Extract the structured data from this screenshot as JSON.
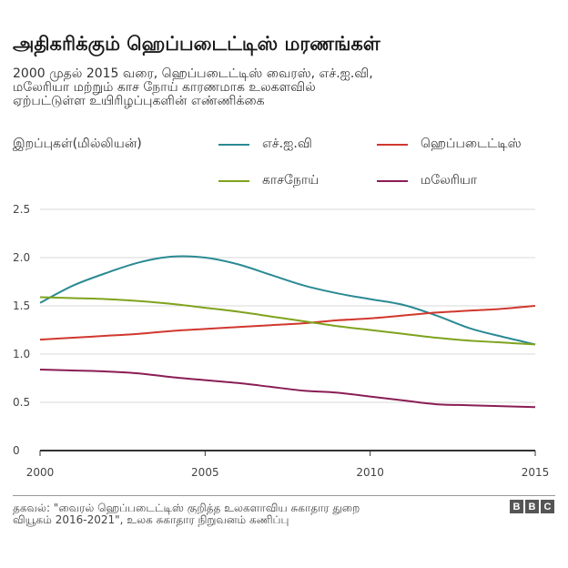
{
  "header": {
    "title": "அதிகரிக்கும் ஹெப்படைட்டிஸ் மரணங்கள்",
    "subtitle_lines": [
      "2000 முதல் 2015 வரை, ஹெப்படைட்டிஸ் வைரஸ், எச்.ஐ.வி,",
      "மலேரியா மற்றும் காச நோய் காரணமாக உலகளவில்",
      "ஏற்பட்டுள்ள உயிரிழப்புகளின் எண்ணிக்கை"
    ]
  },
  "colors": {
    "hiv": "#2a8a93",
    "hepatitis": "#d1372e",
    "tb": "#7fa31e",
    "malaria": "#8a1d55",
    "grid": "#d9d9d9",
    "axis": "#333333"
  },
  "footer": {
    "source_lines": [
      "தகவல்: \"வைரல் ஹெப்படைட்டிஸ் குறித்த உலகளாவிய சுகாதார துறை",
      "வியூகம் 2016-2021\", உலக சுகாதார நிறுவனம் கணிப்பு"
    ],
    "brand": [
      "B",
      "B",
      "C"
    ]
  },
  "chart_data": {
    "type": "line",
    "title": "அதிகரிக்கும் ஹெப்படைட்டிஸ் மரணங்கள்",
    "ylabel": "இறப்புகள்(மில்லியன்)",
    "xlabel": "",
    "xlim": [
      2000,
      2015
    ],
    "ylim": [
      0,
      2.5
    ],
    "xticks": [
      2000,
      2005,
      2010,
      2015
    ],
    "yticks": [
      0,
      0.5,
      1.0,
      1.5,
      2.0,
      2.5
    ],
    "ytick_labels": [
      "0",
      "0.5",
      "1.0",
      "1.5",
      "2.0",
      "2.5"
    ],
    "grid": true,
    "legend_position": "top",
    "series": [
      {
        "key": "hiv",
        "name": "எச்.ஐ.வி",
        "x": [
          2000,
          2001,
          2002,
          2003,
          2004,
          2005,
          2006,
          2007,
          2008,
          2009,
          2010,
          2011,
          2012,
          2013,
          2014,
          2015
        ],
        "y": [
          1.53,
          1.71,
          1.84,
          1.95,
          2.01,
          2.0,
          1.93,
          1.82,
          1.71,
          1.63,
          1.57,
          1.51,
          1.4,
          1.27,
          1.18,
          1.1
        ]
      },
      {
        "key": "hepatitis",
        "name": "ஹெப்படைட்டிஸ்",
        "x": [
          2000,
          2001,
          2002,
          2003,
          2004,
          2005,
          2006,
          2007,
          2008,
          2009,
          2010,
          2011,
          2012,
          2013,
          2014,
          2015
        ],
        "y": [
          1.15,
          1.17,
          1.19,
          1.21,
          1.24,
          1.26,
          1.28,
          1.3,
          1.32,
          1.35,
          1.37,
          1.4,
          1.43,
          1.45,
          1.47,
          1.5
        ]
      },
      {
        "key": "tb",
        "name": "காசநோய்",
        "x": [
          2000,
          2001,
          2002,
          2003,
          2004,
          2005,
          2006,
          2007,
          2008,
          2009,
          2010,
          2011,
          2012,
          2013,
          2014,
          2015
        ],
        "y": [
          1.59,
          1.58,
          1.57,
          1.55,
          1.52,
          1.48,
          1.44,
          1.39,
          1.34,
          1.29,
          1.25,
          1.21,
          1.17,
          1.14,
          1.12,
          1.1
        ]
      },
      {
        "key": "malaria",
        "name": "மலேரியா",
        "x": [
          2000,
          2001,
          2002,
          2003,
          2004,
          2005,
          2006,
          2007,
          2008,
          2009,
          2010,
          2011,
          2012,
          2013,
          2014,
          2015
        ],
        "y": [
          0.84,
          0.83,
          0.82,
          0.8,
          0.76,
          0.73,
          0.7,
          0.66,
          0.62,
          0.6,
          0.56,
          0.52,
          0.48,
          0.47,
          0.46,
          0.45
        ]
      }
    ]
  }
}
